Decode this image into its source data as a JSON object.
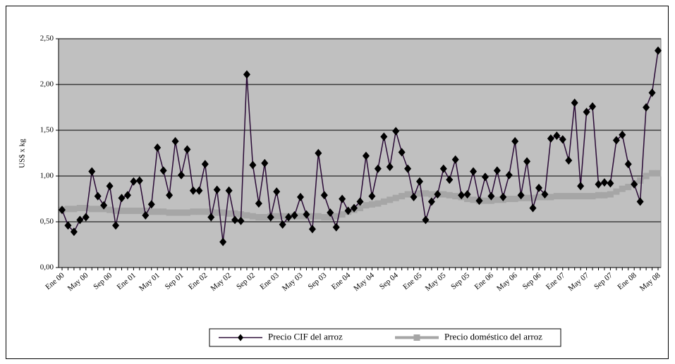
{
  "chart_data": {
    "type": "line",
    "y_label": "US$ x kg",
    "categories": [
      "Ene 00",
      null,
      null,
      null,
      "May 00",
      null,
      null,
      null,
      "Sep 00",
      null,
      null,
      null,
      "Ene 01",
      null,
      null,
      null,
      "May 01",
      null,
      null,
      null,
      "Sep 01",
      null,
      null,
      null,
      "Ene 02",
      null,
      null,
      null,
      "May 02",
      null,
      null,
      null,
      "Sep 02",
      null,
      null,
      null,
      "Ene 03",
      null,
      null,
      null,
      "May 03",
      null,
      null,
      null,
      "Sep 03",
      null,
      null,
      null,
      "Ene 04",
      null,
      null,
      null,
      "May 04",
      null,
      null,
      null,
      "Sep 04",
      null,
      null,
      null,
      "Ene 05",
      null,
      null,
      null,
      "May 05",
      null,
      null,
      null,
      "Sep 05",
      null,
      null,
      null,
      "Ene 06",
      null,
      null,
      null,
      "May 06",
      null,
      null,
      null,
      "Sep 06",
      null,
      null,
      null,
      "Ene 07",
      null,
      null,
      null,
      "May 07",
      null,
      null,
      null,
      "Sep 07",
      null,
      null,
      null,
      "Ene 08",
      null,
      null,
      null,
      "May 08"
    ],
    "series": [
      {
        "name": "Precio CIF del arroz",
        "color": "#2a0a36",
        "marker": "diamond",
        "values": [
          0.63,
          0.46,
          0.39,
          0.52,
          0.55,
          1.05,
          0.78,
          0.68,
          0.89,
          0.46,
          0.76,
          0.79,
          0.94,
          0.95,
          0.57,
          0.69,
          1.31,
          1.06,
          0.79,
          1.38,
          1.01,
          1.29,
          0.84,
          0.84,
          1.13,
          0.55,
          0.85,
          0.28,
          0.84,
          0.52,
          0.51,
          2.11,
          1.12,
          0.7,
          1.14,
          0.55,
          0.83,
          0.47,
          0.55,
          0.57,
          0.77,
          0.58,
          0.42,
          1.25,
          0.79,
          0.6,
          0.44,
          0.75,
          0.62,
          0.65,
          0.72,
          1.22,
          0.78,
          1.08,
          1.43,
          1.1,
          1.49,
          1.26,
          1.08,
          0.77,
          0.94,
          0.52,
          0.72,
          0.8,
          1.08,
          0.96,
          1.18,
          0.79,
          0.8,
          1.05,
          0.73,
          0.99,
          0.78,
          1.06,
          0.77,
          1.01,
          1.38,
          0.79,
          1.16,
          0.65,
          0.87,
          0.8,
          1.41,
          1.44,
          1.4,
          1.17,
          1.8,
          0.89,
          1.7,
          1.76,
          0.91,
          0.93,
          0.92,
          1.39,
          1.45,
          1.13,
          0.91,
          0.72,
          1.75,
          1.91,
          2.37
        ]
      },
      {
        "name": "Precio doméstico del arroz",
        "color": "#a6a6a6",
        "marker": "square",
        "values": [
          0.63,
          0.64,
          0.64,
          0.65,
          0.65,
          0.64,
          0.64,
          0.64,
          0.63,
          0.62,
          0.62,
          0.62,
          0.62,
          0.62,
          0.62,
          0.61,
          0.61,
          0.61,
          0.6,
          0.6,
          0.6,
          0.6,
          0.61,
          0.61,
          0.61,
          0.61,
          0.6,
          0.6,
          0.59,
          0.59,
          0.58,
          0.57,
          0.56,
          0.55,
          0.55,
          0.56,
          0.56,
          0.56,
          0.56,
          0.56,
          0.56,
          0.56,
          0.56,
          0.56,
          0.55,
          0.55,
          0.56,
          0.58,
          0.61,
          0.63,
          0.65,
          0.68,
          0.69,
          0.7,
          0.72,
          0.74,
          0.76,
          0.78,
          0.8,
          0.8,
          0.81,
          0.81,
          0.8,
          0.8,
          0.8,
          0.79,
          0.78,
          0.77,
          0.75,
          0.74,
          0.73,
          0.73,
          0.73,
          0.74,
          0.74,
          0.75,
          0.75,
          0.76,
          0.76,
          0.76,
          0.77,
          0.77,
          0.77,
          0.78,
          0.78,
          0.78,
          0.78,
          0.78,
          0.78,
          0.78,
          0.79,
          0.79,
          0.8,
          0.83,
          0.86,
          0.88,
          0.92,
          0.95,
          1.0,
          1.03,
          1.03
        ]
      }
    ],
    "ylim": [
      0,
      2.5
    ],
    "yticks": [
      {
        "value": 0,
        "label": "0,00"
      },
      {
        "value": 0.5,
        "label": "0,50"
      },
      {
        "value": 1,
        "label": "1,00"
      },
      {
        "value": 1.5,
        "label": "1,50"
      },
      {
        "value": 2,
        "label": "2,00"
      },
      {
        "value": 2.5,
        "label": "2,50"
      }
    ],
    "grid": true,
    "plot_background": "#c0c0c0",
    "legend": "bottom"
  }
}
